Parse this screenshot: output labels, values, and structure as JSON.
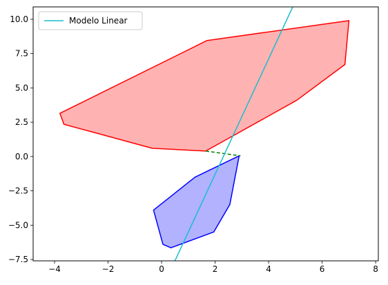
{
  "chart_data": {
    "type": "line",
    "title": "",
    "xlabel": "",
    "ylabel": "",
    "xlim": [
      -4.8,
      8.1
    ],
    "ylim": [
      -7.6,
      10.9
    ],
    "xticks": [
      -4,
      -2,
      0,
      2,
      4,
      6,
      8
    ],
    "xtick_labels": [
      "−4",
      "−2",
      "0",
      "2",
      "4",
      "6",
      "8"
    ],
    "yticks": [
      -7.5,
      -5.0,
      -2.5,
      0.0,
      2.5,
      5.0,
      7.5,
      10.0
    ],
    "ytick_labels": [
      "−7.5",
      "−5.0",
      "−2.5",
      "0.0",
      "2.5",
      "5.0",
      "7.5",
      "10.0"
    ],
    "grid": false,
    "legend": {
      "position": "top-left",
      "entries": [
        "Modelo Linear"
      ]
    },
    "series": [
      {
        "name": "Modelo Linear",
        "kind": "line",
        "color": "#17becf",
        "x": [
          0.5,
          4.9
        ],
        "y": [
          -7.6,
          10.9
        ]
      },
      {
        "kind": "filled-polygon",
        "edge_color": "#ff0000",
        "fill_color": "#ffb2b2",
        "x": [
          -3.8,
          1.7,
          7.0,
          6.85,
          5.05,
          1.65,
          -0.35,
          -3.65
        ],
        "y": [
          3.15,
          8.45,
          9.9,
          6.7,
          4.1,
          0.4,
          0.6,
          2.35
        ]
      },
      {
        "kind": "filled-polygon",
        "edge_color": "#0000ff",
        "fill_color": "#b2b2ff",
        "x": [
          1.25,
          2.9,
          2.55,
          1.95,
          0.35,
          0.05,
          -0.3
        ],
        "y": [
          -1.5,
          0.05,
          -3.5,
          -5.5,
          -6.65,
          -6.4,
          -3.9
        ]
      },
      {
        "kind": "dashed-line",
        "color": "#008000",
        "x": [
          1.65,
          2.95
        ],
        "y": [
          0.4,
          0.05
        ]
      }
    ]
  }
}
